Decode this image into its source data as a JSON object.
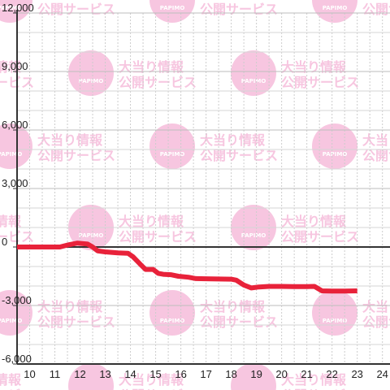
{
  "chart_data": {
    "type": "line",
    "title": "",
    "xlabel": "",
    "ylabel": "",
    "xlim": [
      9.5,
      24.3
    ],
    "ylim": [
      -6000,
      12000
    ],
    "x_ticks": [
      "10",
      "11",
      "12",
      "13",
      "14",
      "15",
      "16",
      "17",
      "18",
      "19",
      "20",
      "21",
      "22",
      "23",
      "24"
    ],
    "y_ticks": [
      "12,000",
      "9,000",
      "6,000",
      "3,000",
      "0",
      "-3,000",
      "-6,000"
    ],
    "grid": true,
    "legend": "none",
    "series": [
      {
        "color": "#e8223a",
        "points": [
          [
            9.5,
            0
          ],
          [
            11.2,
            0
          ],
          [
            11.5,
            100
          ],
          [
            11.9,
            200
          ],
          [
            12.3,
            150
          ],
          [
            12.5,
            0
          ],
          [
            12.7,
            -200
          ],
          [
            13.0,
            -250
          ],
          [
            13.5,
            -300
          ],
          [
            13.9,
            -320
          ],
          [
            14.1,
            -500
          ],
          [
            14.4,
            -900
          ],
          [
            14.6,
            -1150
          ],
          [
            14.9,
            -1150
          ],
          [
            15.1,
            -1350
          ],
          [
            15.3,
            -1400
          ],
          [
            15.6,
            -1420
          ],
          [
            15.9,
            -1500
          ],
          [
            16.3,
            -1550
          ],
          [
            16.6,
            -1620
          ],
          [
            17.0,
            -1630
          ],
          [
            17.5,
            -1640
          ],
          [
            18.0,
            -1650
          ],
          [
            18.2,
            -1700
          ],
          [
            18.5,
            -1950
          ],
          [
            18.8,
            -2100
          ],
          [
            19.1,
            -2050
          ],
          [
            19.5,
            -2020
          ],
          [
            20.0,
            -2020
          ],
          [
            20.5,
            -2030
          ],
          [
            21.0,
            -2030
          ],
          [
            21.3,
            -2020
          ],
          [
            21.6,
            -2250
          ],
          [
            22.0,
            -2260
          ],
          [
            22.5,
            -2260
          ],
          [
            23.0,
            -2250
          ]
        ]
      }
    ]
  },
  "watermark": {
    "badge_text": "PAPIMO",
    "line1": "大当り情報",
    "line2": "公開サービス",
    "color": "#f7c6e0"
  },
  "colors": {
    "line": "#e8223a",
    "axis": "#333333",
    "grid": "#cccccc",
    "background": "#ffffff"
  }
}
